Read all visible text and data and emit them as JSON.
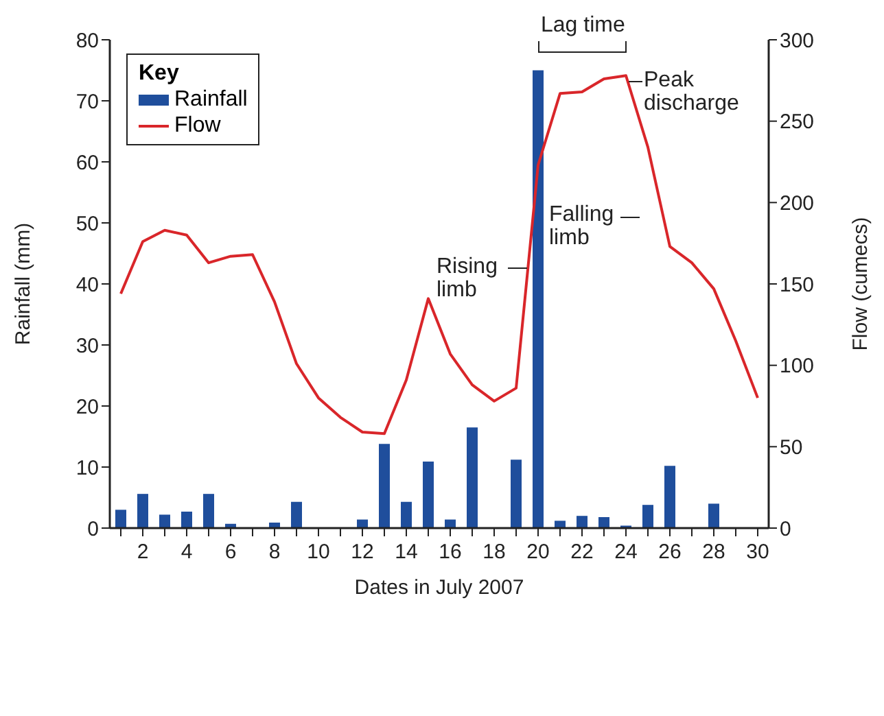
{
  "chart_data": {
    "type": "bar",
    "xlabel": "Dates in July 2007",
    "ylabel": "Rainfall (mm)",
    "y2label": "Flow (cumecs)",
    "legend_title": "Key",
    "legend": "top left",
    "x": [
      1,
      2,
      3,
      4,
      5,
      6,
      7,
      8,
      9,
      10,
      11,
      12,
      13,
      14,
      15,
      16,
      17,
      18,
      19,
      20,
      21,
      22,
      23,
      24,
      25,
      26,
      27,
      28,
      29,
      30
    ],
    "xlim": [
      0.5,
      30.5
    ],
    "xticks": [
      {
        "value": 1,
        "label": null
      },
      2,
      {
        "value": 3,
        "label": null
      },
      4,
      {
        "value": 5,
        "label": null
      },
      6,
      {
        "value": 7,
        "label": null
      },
      8,
      {
        "value": 9,
        "label": null
      },
      10,
      {
        "value": 11,
        "label": null
      },
      12,
      {
        "value": 13,
        "label": null
      },
      14,
      {
        "value": 15,
        "label": null
      },
      16,
      {
        "value": 17,
        "label": null
      },
      18,
      {
        "value": 19,
        "label": null
      },
      20,
      {
        "value": 21,
        "label": null
      },
      22,
      {
        "value": 23,
        "label": null
      },
      24,
      {
        "value": 25,
        "label": null
      },
      26,
      {
        "value": 27,
        "label": null
      },
      28,
      {
        "value": 29,
        "label": null
      },
      30
    ],
    "series": [
      {
        "name": "Rainfall",
        "color": "#1f4e9c",
        "values": [
          3,
          5.6,
          2.2,
          2.7,
          5.6,
          0.7,
          0,
          0.9,
          4.3,
          0,
          0,
          1.4,
          13.8,
          4.3,
          10.9,
          1.4,
          16.5,
          0,
          11.2,
          75,
          1.2,
          2,
          1.8,
          0.4,
          3.8,
          10.2,
          0,
          4,
          0,
          0
        ]
      },
      {
        "name": "Flow",
        "type": "line",
        "axis": "y2",
        "color": "#d9262a",
        "marker": "none",
        "values": [
          144,
          176,
          183,
          180,
          163,
          167,
          168,
          139,
          101,
          80,
          68,
          59,
          58,
          91,
          141,
          107,
          88,
          78,
          86,
          223,
          267,
          268,
          276,
          278,
          234,
          173,
          163,
          147,
          115,
          80
        ]
      }
    ],
    "ylim": [
      0,
      80
    ],
    "yticks": [
      0,
      10,
      20,
      30,
      40,
      50,
      60,
      70,
      80
    ],
    "y2lim": [
      0,
      300
    ],
    "y2ticks": [
      0,
      50,
      100,
      150,
      200,
      250,
      300
    ],
    "annotations": [
      "Lag time",
      "Peak discharge",
      "Rising limb",
      "Falling limb"
    ]
  }
}
